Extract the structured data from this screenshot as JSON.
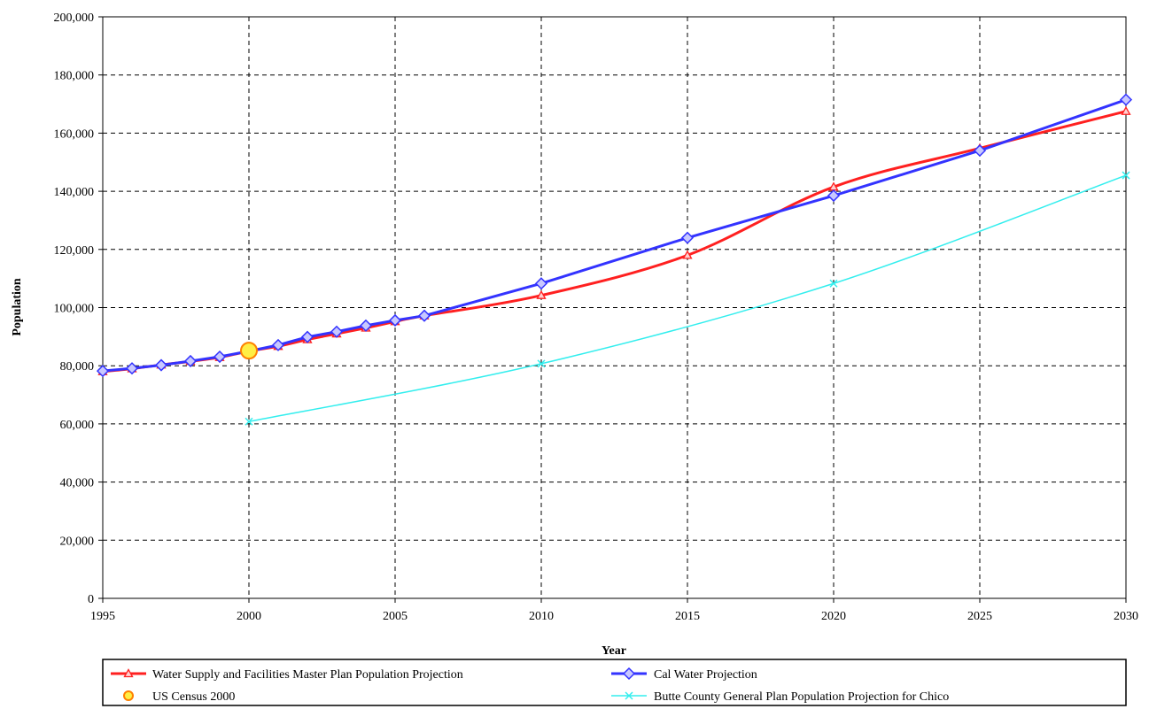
{
  "chart_data": {
    "type": "line",
    "title": "",
    "xlabel": "Year",
    "ylabel": "Population",
    "xlim": [
      1995,
      2030
    ],
    "ylim": [
      0,
      200000
    ],
    "x_ticks": [
      1995,
      2000,
      2005,
      2010,
      2015,
      2020,
      2025,
      2030
    ],
    "x_tick_labels": [
      "1995",
      "2000",
      "2005",
      "2010",
      "2015",
      "2020",
      "2025",
      "2030"
    ],
    "y_ticks": [
      0,
      20000,
      40000,
      60000,
      80000,
      100000,
      120000,
      140000,
      160000,
      180000,
      200000
    ],
    "y_tick_labels": [
      "0",
      "20,000",
      "40,000",
      "60,000",
      "80,000",
      "100,000",
      "120,000",
      "140,000",
      "160,000",
      "180,000",
      "200,000"
    ],
    "grid": true,
    "legend_position": "bottom",
    "series": [
      {
        "name": "Water Supply and Facilities Master Plan Population Projection",
        "color": "#ff2020",
        "marker": "triangle",
        "smooth": true,
        "x": [
          1995,
          1996,
          1997,
          1998,
          1999,
          2000,
          2001,
          2002,
          2003,
          2004,
          2005,
          2006,
          2010,
          2015,
          2020,
          2025,
          2030
        ],
        "y": [
          78000,
          79000,
          80300,
          81500,
          82900,
          85000,
          86700,
          89000,
          91000,
          93000,
          95200,
          97200,
          104200,
          118000,
          141500,
          154800,
          167500
        ]
      },
      {
        "name": "Cal Water Projection",
        "color": "#3333ff",
        "marker": "diamond",
        "smooth": false,
        "x": [
          1995,
          1996,
          1997,
          1998,
          1999,
          2000,
          2001,
          2002,
          2003,
          2004,
          2005,
          2006,
          2010,
          2015,
          2020,
          2025,
          2030
        ],
        "y": [
          78200,
          79100,
          80200,
          81600,
          83100,
          85000,
          87100,
          89900,
          91700,
          93800,
          95600,
          97200,
          108300,
          124000,
          138500,
          154000,
          171500
        ]
      },
      {
        "name": "US Census 2000",
        "color": "#ff8000",
        "fill": "#ffee44",
        "marker": "circle",
        "x": [
          2000
        ],
        "y": [
          85200
        ]
      },
      {
        "name": "Butte County General Plan Population Projection for Chico",
        "color": "#33eeee",
        "marker": "x",
        "smooth": true,
        "x": [
          2000,
          2010,
          2020,
          2030
        ],
        "y": [
          60800,
          80700,
          108300,
          145500
        ]
      }
    ]
  }
}
